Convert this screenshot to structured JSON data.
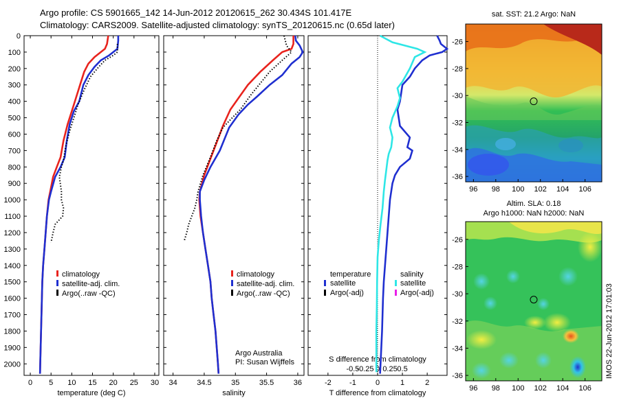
{
  "header": {
    "line1": "Argo profile: CS 5901665_142 14-Jun-2012 20120615_262 30.434S 101.417E",
    "line2": "Climatology: CARS2009. Satellite-adjusted climatology: synTS_20120615.nc (0.65d later)"
  },
  "colors": {
    "climatology": "#e8231d",
    "satellite": "#1f2fd0",
    "argo": "#000000",
    "sat_salinity": "#2ee6e6",
    "argo_salinity": "#e81ee8"
  },
  "chart_data": [
    {
      "type": "line",
      "xlabel": "temperature (deg C)",
      "xlim": [
        -1.5,
        31
      ],
      "xticks": [
        0,
        5,
        10,
        15,
        20,
        25,
        30
      ],
      "ylim": [
        2070,
        0
      ],
      "yticks": [
        0,
        100,
        200,
        300,
        400,
        500,
        600,
        700,
        800,
        900,
        1000,
        1100,
        1200,
        1300,
        1400,
        1500,
        1600,
        1700,
        1800,
        1900,
        2000
      ],
      "legend": [
        "climatology",
        "satellite-adj. clim.",
        "Argo(..raw -QC)"
      ],
      "series": [
        {
          "name": "climatology",
          "color": "#e8231d",
          "points": [
            [
              18.8,
              0
            ],
            [
              18.5,
              50
            ],
            [
              18,
              80
            ],
            [
              17,
              100
            ],
            [
              15.5,
              130
            ],
            [
              14,
              170
            ],
            [
              13,
              220
            ],
            [
              12,
              300
            ],
            [
              11,
              380
            ],
            [
              10,
              460
            ],
            [
              9,
              540
            ],
            [
              8,
              640
            ],
            [
              7.3,
              740
            ],
            [
              6.4,
              800
            ],
            [
              5.5,
              860
            ],
            [
              4.8,
              950
            ],
            [
              4.4,
              1000
            ],
            [
              4,
              1100
            ],
            [
              3.7,
              1200
            ],
            [
              3.4,
              1300
            ],
            [
              3.1,
              1400
            ],
            [
              2.9,
              1500
            ],
            [
              2.8,
              1600
            ],
            [
              2.7,
              1700
            ],
            [
              2.6,
              1800
            ],
            [
              2.5,
              1900
            ],
            [
              2.4,
              2000
            ],
            [
              2.35,
              2060
            ]
          ]
        },
        {
          "name": "satellite-adj. clim.",
          "color": "#1f2fd0",
          "points": [
            [
              21.2,
              0
            ],
            [
              21.2,
              30
            ],
            [
              21,
              80
            ],
            [
              20,
              100
            ],
            [
              19,
              120
            ],
            [
              17,
              150
            ],
            [
              15.5,
              190
            ],
            [
              14,
              240
            ],
            [
              12.8,
              300
            ],
            [
              11.8,
              400
            ],
            [
              10.5,
              460
            ],
            [
              9.5,
              540
            ],
            [
              8.8,
              640
            ],
            [
              8.3,
              740
            ],
            [
              7.3,
              800
            ],
            [
              6,
              860
            ],
            [
              5,
              950
            ],
            [
              4.5,
              1000
            ],
            [
              4,
              1100
            ],
            [
              3.7,
              1200
            ],
            [
              3.4,
              1300
            ],
            [
              3.1,
              1400
            ],
            [
              2.9,
              1500
            ],
            [
              2.8,
              1600
            ],
            [
              2.7,
              1700
            ],
            [
              2.6,
              1800
            ],
            [
              2.5,
              1900
            ],
            [
              2.4,
              2000
            ],
            [
              2.35,
              2060
            ]
          ]
        },
        {
          "name": "Argo(..raw -QC)",
          "color": "#000000",
          "dotted": true,
          "points": [
            [
              21,
              50
            ],
            [
              21,
              100
            ],
            [
              20,
              120
            ],
            [
              18,
              150
            ],
            [
              16.5,
              190
            ],
            [
              14.5,
              250
            ],
            [
              13,
              330
            ],
            [
              11.5,
              420
            ],
            [
              10.5,
              500
            ],
            [
              9.5,
              580
            ],
            [
              8.5,
              680
            ],
            [
              8,
              760
            ],
            [
              7.5,
              800
            ],
            [
              7,
              860
            ],
            [
              7.5,
              950
            ],
            [
              7.5,
              1000
            ],
            [
              8,
              1050
            ],
            [
              7.8,
              1100
            ],
            [
              6,
              1150
            ],
            [
              5.5,
              1200
            ],
            [
              5,
              1260
            ]
          ]
        }
      ]
    },
    {
      "type": "line",
      "xlabel": "salinity",
      "xlim": [
        33.85,
        36.1
      ],
      "xticks": [
        34,
        34.5,
        35,
        35.5,
        36
      ],
      "ylim": [
        2070,
        0
      ],
      "legend": [
        "climatology",
        "satellite-adj. clim.",
        "Argo(..raw -QC)"
      ],
      "annotation": [
        "Argo Australia",
        "PI: Susan Wijffels"
      ],
      "series": [
        {
          "name": "climatology",
          "color": "#e8231d",
          "points": [
            [
              35.93,
              0
            ],
            [
              35.93,
              50
            ],
            [
              35.9,
              80
            ],
            [
              35.75,
              100
            ],
            [
              35.6,
              150
            ],
            [
              35.4,
              220
            ],
            [
              35.2,
              300
            ],
            [
              35.05,
              380
            ],
            [
              34.92,
              450
            ],
            [
              34.8,
              550
            ],
            [
              34.7,
              650
            ],
            [
              34.6,
              750
            ],
            [
              34.5,
              850
            ],
            [
              34.43,
              950
            ],
            [
              34.42,
              1000
            ],
            [
              34.44,
              1100
            ],
            [
              34.48,
              1200
            ],
            [
              34.52,
              1300
            ],
            [
              34.56,
              1400
            ],
            [
              34.6,
              1500
            ],
            [
              34.62,
              1600
            ],
            [
              34.65,
              1700
            ],
            [
              34.68,
              1800
            ],
            [
              34.7,
              1900
            ],
            [
              34.72,
              2000
            ],
            [
              34.73,
              2060
            ]
          ]
        },
        {
          "name": "satellite-adj. clim.",
          "color": "#1f2fd0",
          "points": [
            [
              35.96,
              0
            ],
            [
              35.97,
              30
            ],
            [
              36.03,
              60
            ],
            [
              36.08,
              100
            ],
            [
              36.03,
              130
            ],
            [
              35.9,
              170
            ],
            [
              35.75,
              240
            ],
            [
              35.55,
              300
            ],
            [
              35.35,
              370
            ],
            [
              35.2,
              420
            ],
            [
              35.05,
              480
            ],
            [
              34.9,
              560
            ],
            [
              34.75,
              700
            ],
            [
              34.6,
              800
            ],
            [
              34.5,
              880
            ],
            [
              34.43,
              950
            ],
            [
              34.43,
              1000
            ],
            [
              34.45,
              1100
            ],
            [
              34.48,
              1200
            ],
            [
              34.52,
              1300
            ],
            [
              34.56,
              1400
            ],
            [
              34.6,
              1500
            ],
            [
              34.62,
              1600
            ],
            [
              34.65,
              1700
            ],
            [
              34.68,
              1800
            ],
            [
              34.7,
              1900
            ],
            [
              34.72,
              2000
            ],
            [
              34.73,
              2060
            ]
          ]
        },
        {
          "name": "Argo(..raw -QC)",
          "color": "#000000",
          "dotted": true,
          "points": [
            [
              35.78,
              0
            ],
            [
              35.82,
              60
            ],
            [
              35.9,
              100
            ],
            [
              35.75,
              150
            ],
            [
              35.55,
              220
            ],
            [
              35.4,
              290
            ],
            [
              35.25,
              360
            ],
            [
              35.08,
              450
            ],
            [
              34.95,
              500
            ],
            [
              34.8,
              560
            ],
            [
              34.7,
              640
            ],
            [
              34.6,
              740
            ],
            [
              34.48,
              850
            ],
            [
              34.4,
              950
            ],
            [
              34.38,
              1000
            ],
            [
              34.35,
              1050
            ],
            [
              34.3,
              1100
            ],
            [
              34.25,
              1150
            ],
            [
              34.22,
              1200
            ],
            [
              34.18,
              1250
            ]
          ]
        }
      ]
    },
    {
      "type": "line",
      "xlabel": "T difference from climatology",
      "xticks": [
        "-2",
        "-1",
        "0",
        "1",
        "2"
      ],
      "xlim": [
        -2.8,
        2.8
      ],
      "top_axis_label": "S difference from climatology",
      "top_xticks": [
        "-0.5",
        "-0.25",
        "0",
        "0.25",
        "0.5"
      ],
      "ylim": [
        2070,
        0
      ],
      "legend_left": {
        "heading": "temperature",
        "items": [
          "satellite",
          "Argo(-adj)"
        ]
      },
      "legend_right": {
        "heading": "salinity",
        "items": [
          "satellite",
          "Argo(-adj)"
        ]
      },
      "series": [
        {
          "name": "satellite",
          "group": "temperature",
          "color": "#1f2fd0",
          "points": [
            [
              2.4,
              0
            ],
            [
              2.5,
              30
            ],
            [
              2.55,
              50
            ],
            [
              2.8,
              80
            ],
            [
              2.6,
              100
            ],
            [
              2.1,
              120
            ],
            [
              1.8,
              150
            ],
            [
              1.5,
              200
            ],
            [
              1.3,
              250
            ],
            [
              1,
              300
            ],
            [
              0.9,
              400
            ],
            [
              0.8,
              450
            ],
            [
              0.9,
              550
            ],
            [
              1.3,
              620
            ],
            [
              1.2,
              680
            ],
            [
              1.4,
              700
            ],
            [
              1.3,
              750
            ],
            [
              0.9,
              800
            ],
            [
              0.7,
              850
            ],
            [
              0.6,
              900
            ],
            [
              0.55,
              950
            ],
            [
              0.5,
              1000
            ],
            [
              0.45,
              1100
            ],
            [
              0.4,
              1200
            ],
            [
              0.35,
              1300
            ],
            [
              0.3,
              1400
            ],
            [
              0.25,
              1500
            ],
            [
              0.22,
              1600
            ],
            [
              0.2,
              1700
            ],
            [
              0.18,
              1800
            ],
            [
              0.15,
              1900
            ],
            [
              0.12,
              2000
            ],
            [
              0.1,
              2060
            ]
          ]
        },
        {
          "name": "satellite",
          "group": "salinity",
          "color": "#2ee6e6",
          "points": [
            [
              0.1,
              0
            ],
            [
              0.6,
              40
            ],
            [
              1.6,
              80
            ],
            [
              1.9,
              100
            ],
            [
              1.5,
              130
            ],
            [
              1.3,
              200
            ],
            [
              1,
              280
            ],
            [
              0.8,
              320
            ],
            [
              0.9,
              380
            ],
            [
              0.8,
              430
            ],
            [
              0.6,
              500
            ],
            [
              0.5,
              560
            ],
            [
              0.6,
              620
            ],
            [
              0.55,
              680
            ],
            [
              0.45,
              720
            ],
            [
              0.4,
              760
            ],
            [
              0.35,
              820
            ],
            [
              0.3,
              880
            ],
            [
              0.25,
              950
            ],
            [
              0.2,
              1050
            ],
            [
              0.12,
              1150
            ],
            [
              0.05,
              1250
            ],
            [
              0.0,
              1350
            ],
            [
              -0.02,
              1500
            ],
            [
              -0.03,
              1650
            ],
            [
              -0.05,
              1800
            ],
            [
              -0.05,
              1950
            ],
            [
              -0.05,
              2050
            ]
          ]
        }
      ]
    }
  ],
  "maps": [
    {
      "title": "sat. SST: 21.2 Argo: NaN",
      "xticks": [
        "96",
        "98",
        "100",
        "102",
        "104",
        "106"
      ],
      "yticks": [
        "-26",
        "-28",
        "-30",
        "-32",
        "-34",
        "-36"
      ],
      "marker": [
        101.4,
        -30.43
      ]
    },
    {
      "title_line1": "Altim. SLA: 0.18",
      "title_line2": "Argo h1000: NaN h2000: NaN",
      "xticks": [
        "96",
        "98",
        "100",
        "102",
        "104",
        "106"
      ],
      "yticks": [
        "-26",
        "-28",
        "-30",
        "-32",
        "-34",
        "-36"
      ],
      "marker": [
        101.4,
        -30.43
      ]
    }
  ],
  "stamp": "IMOS 22-Jun-2012 17:01:03"
}
